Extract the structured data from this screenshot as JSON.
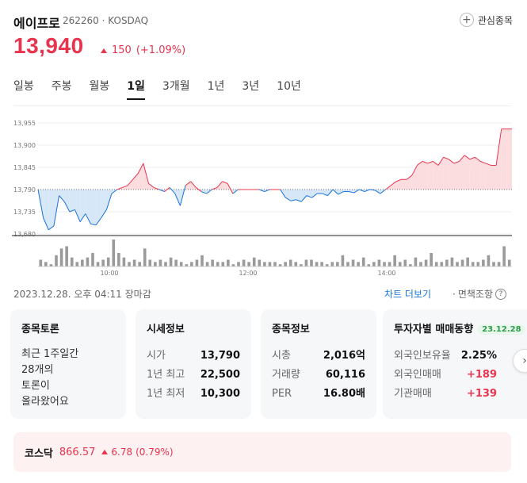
{
  "stock": {
    "name": "에이프로",
    "code": "262260",
    "market": "KOSDAQ",
    "watch_label": "관심종목",
    "price": "13,940",
    "change": "150",
    "change_pct": "(+1.09%)"
  },
  "tabs": [
    "일봉",
    "주봉",
    "월봉",
    "1일",
    "3개월",
    "1년",
    "3년",
    "10년"
  ],
  "active_tab": "1일",
  "status": {
    "time": "2023.12.28. 오후 04:11 장마감",
    "chart_more": "차트 더보기",
    "disclaimer": "면책조항"
  },
  "colors": {
    "up": "#e8344e",
    "down": "#1a73d9"
  },
  "chart_data": {
    "type": "line",
    "title": "",
    "xlabel": "",
    "ylabel": "",
    "y_ticks": [
      "13,955",
      "13,900",
      "13,845",
      "13,790",
      "13,735",
      "13,680"
    ],
    "ylim": [
      13680,
      13955
    ],
    "x_ticks": [
      "10:00",
      "12:00",
      "14:00"
    ],
    "baseline": 13790,
    "series": [
      {
        "values": [
          13790,
          13720,
          13690,
          13700,
          13775,
          13760,
          13735,
          13740,
          13710,
          13730,
          13705,
          13702,
          13720,
          13740,
          13780,
          13790,
          13795,
          13800,
          13815,
          13830,
          13855,
          13805,
          13795,
          13790,
          13785,
          13795,
          13780,
          13750,
          13800,
          13810,
          13795,
          13785,
          13780,
          13790,
          13795,
          13810,
          13805,
          13780,
          13790,
          13790,
          13790,
          13790,
          13790,
          13785,
          13790,
          13790,
          13790,
          13770,
          13762,
          13765,
          13760,
          13775,
          13770,
          13780,
          13780,
          13775,
          13790,
          13778,
          13785,
          13785,
          13782,
          13790,
          13785,
          13790,
          13788,
          13780,
          13790,
          13800,
          13810,
          13815,
          13815,
          13825,
          13850,
          13860,
          13855,
          13860,
          13850,
          13870,
          13865,
          13855,
          13860,
          13875,
          13865,
          13870,
          13860,
          13855,
          13850,
          13850,
          13940,
          13940,
          13940
        ]
      }
    ],
    "volume": [
      3,
      2,
      1,
      5,
      8,
      9,
      4,
      2,
      3,
      4,
      6,
      2,
      3,
      4,
      12,
      6,
      4,
      2,
      3,
      2,
      8,
      3,
      2,
      3,
      2,
      4,
      3,
      2,
      1,
      2,
      3,
      5,
      2,
      3,
      2,
      2,
      3,
      1,
      2,
      3,
      2,
      4,
      3,
      2,
      2,
      2,
      1,
      2,
      3,
      2,
      1,
      3,
      3,
      2,
      2,
      1,
      2,
      2,
      5,
      2,
      3,
      2,
      4,
      1,
      2,
      3,
      2,
      2,
      5,
      2,
      3,
      1,
      4,
      2,
      3,
      6,
      2,
      2,
      3,
      4,
      2,
      3,
      4,
      2,
      2,
      3,
      5,
      2,
      2,
      9,
      3
    ]
  },
  "cards": {
    "discussion": {
      "title": "종목토론",
      "line1": "최근 1주일간",
      "line2": "28개의",
      "line3": "토론이",
      "line4": "올라왔어요"
    },
    "market_info": {
      "title": "시세정보",
      "rows": [
        {
          "k": "시가",
          "v": "13,790"
        },
        {
          "k": "1년 최고",
          "v": "22,500"
        },
        {
          "k": "1년 최저",
          "v": "10,300"
        }
      ]
    },
    "stock_info": {
      "title": "종목정보",
      "rows": [
        {
          "k": "시총",
          "v": "2,016억"
        },
        {
          "k": "거래량",
          "v": "60,116"
        },
        {
          "k": "PER",
          "v": "16.80배"
        }
      ]
    },
    "investor": {
      "title": "투자자별 매매동향",
      "date": "23.12.28",
      "rows": [
        {
          "k": "외국인보유율",
          "v": "2.25%"
        },
        {
          "k": "외국인매매",
          "v": "+189"
        },
        {
          "k": "기관매매",
          "v": "+139"
        }
      ]
    }
  },
  "index": {
    "name": "코스닥",
    "value": "866.57",
    "change": "6.78",
    "change_pct": "(0.79%)"
  }
}
